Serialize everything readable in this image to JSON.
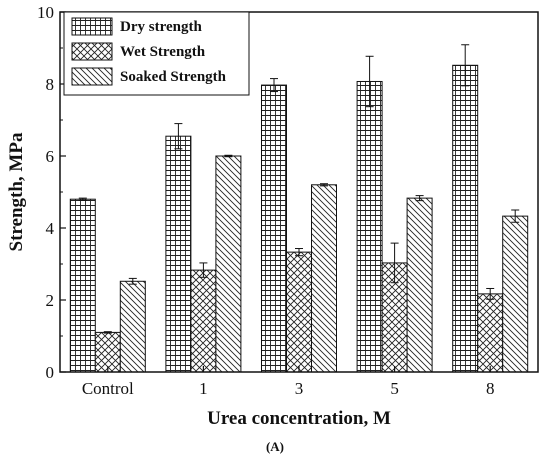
{
  "chart_data": {
    "type": "bar",
    "title": "",
    "caption": "(A)",
    "xlabel": "Urea concentration, M",
    "ylabel": "Strength, MPa",
    "categories": [
      "Control",
      "1",
      "3",
      "5",
      "8"
    ],
    "ylim": [
      0,
      10
    ],
    "yticks": [
      0,
      2,
      4,
      6,
      8,
      10
    ],
    "legend_position": "top-left",
    "grid": false,
    "series": [
      {
        "name": "Dry strength",
        "pattern": "grid",
        "values": [
          4.8,
          6.55,
          7.97,
          8.07,
          8.52
        ],
        "errors": [
          0.03,
          0.35,
          0.18,
          0.7,
          0.57
        ]
      },
      {
        "name": "Wet Strength",
        "pattern": "crosshatch",
        "values": [
          1.1,
          2.83,
          3.33,
          3.03,
          2.17
        ],
        "errors": [
          0.02,
          0.2,
          0.1,
          0.55,
          0.15
        ]
      },
      {
        "name": "Soaked Strength",
        "pattern": "diagonal",
        "values": [
          2.52,
          6.0,
          5.2,
          4.83,
          4.33
        ],
        "errors": [
          0.08,
          0.02,
          0.03,
          0.07,
          0.17
        ]
      }
    ]
  }
}
